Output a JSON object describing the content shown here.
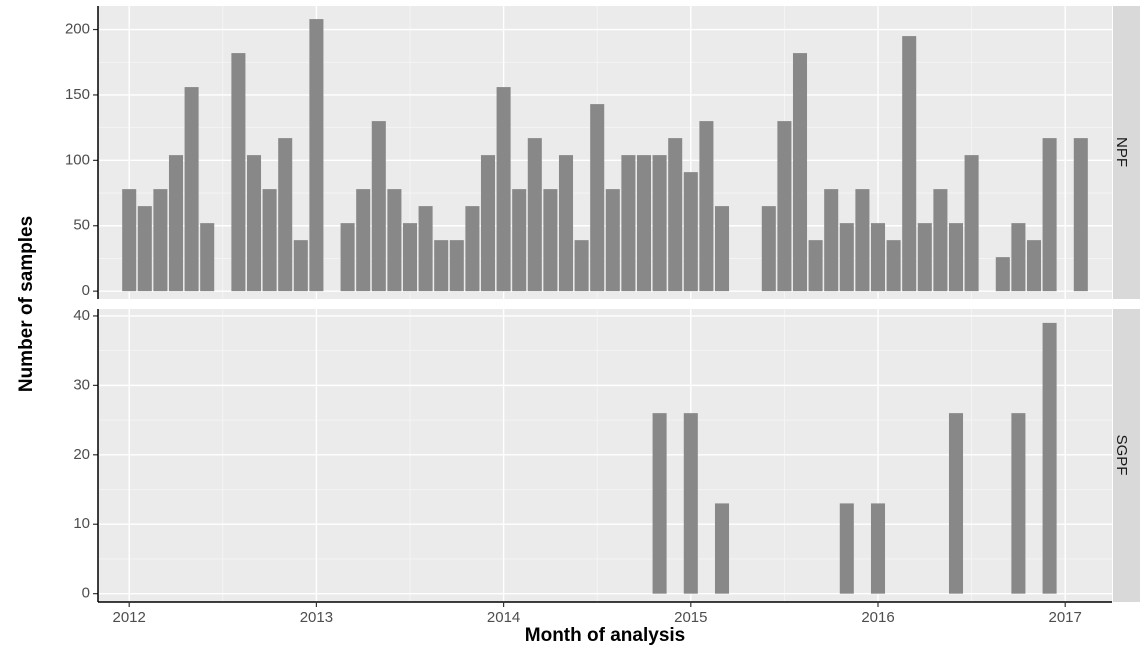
{
  "chart_data": {
    "type": "bar",
    "faceted": true,
    "xlabel": "Month of analysis",
    "ylabel": "Number of samples",
    "x_ticks": [
      "2012",
      "2013",
      "2014",
      "2015",
      "2016",
      "2017"
    ],
    "x_range": [
      "2011-11",
      "2017-04"
    ],
    "grid": true,
    "colors": {
      "bar": "#888888",
      "panel_bg": "#ebebeb",
      "grid_major": "#ffffff",
      "strip_bg": "#d9d9d9",
      "axis": "#000000"
    },
    "panels": [
      {
        "strip": "NPF",
        "ylim": [
          -6,
          218
        ],
        "y_ticks": [
          0,
          50,
          100,
          150,
          200
        ],
        "months": [
          "2012-01",
          "2012-02",
          "2012-03",
          "2012-04",
          "2012-05",
          "2012-06",
          "2012-08",
          "2012-09",
          "2012-10",
          "2012-11",
          "2012-12",
          "2013-01",
          "2013-03",
          "2013-04",
          "2013-05",
          "2013-06",
          "2013-07",
          "2013-08",
          "2013-09",
          "2013-10",
          "2013-11",
          "2013-12",
          "2014-01",
          "2014-02",
          "2014-03",
          "2014-04",
          "2014-05",
          "2014-06",
          "2014-07",
          "2014-08",
          "2014-09",
          "2014-10",
          "2014-11",
          "2014-12",
          "2015-01",
          "2015-02",
          "2015-03",
          "2015-04",
          "2015-06",
          "2015-07",
          "2015-08",
          "2015-09",
          "2015-10",
          "2015-11",
          "2015-12",
          "2016-01",
          "2016-02",
          "2016-03",
          "2016-04",
          "2016-05",
          "2016-06",
          "2016-07",
          "2016-09",
          "2016-10",
          "2016-11",
          "2016-12",
          "2017-02"
        ],
        "values": [
          78,
          65,
          78,
          104,
          156,
          52,
          182,
          104,
          78,
          117,
          39,
          208,
          52,
          78,
          130,
          78,
          52,
          65,
          39,
          39,
          65,
          104,
          156,
          78,
          117,
          78,
          104,
          39,
          143,
          78,
          104,
          104,
          104,
          117,
          91,
          130,
          65,
          0,
          65,
          130,
          182,
          39,
          78,
          52,
          78,
          52,
          39,
          195,
          52,
          78,
          52,
          104,
          26,
          52,
          39,
          117,
          117
        ]
      },
      {
        "strip": "SGPF",
        "ylim": [
          -1.2,
          41
        ],
        "y_ticks": [
          0,
          10,
          20,
          30,
          40
        ],
        "months": [
          "2014-11",
          "2015-01",
          "2015-03",
          "2015-11",
          "2016-01",
          "2016-06",
          "2016-10",
          "2016-12"
        ],
        "values": [
          26,
          26,
          13,
          13,
          13,
          26,
          26,
          39
        ]
      }
    ]
  }
}
